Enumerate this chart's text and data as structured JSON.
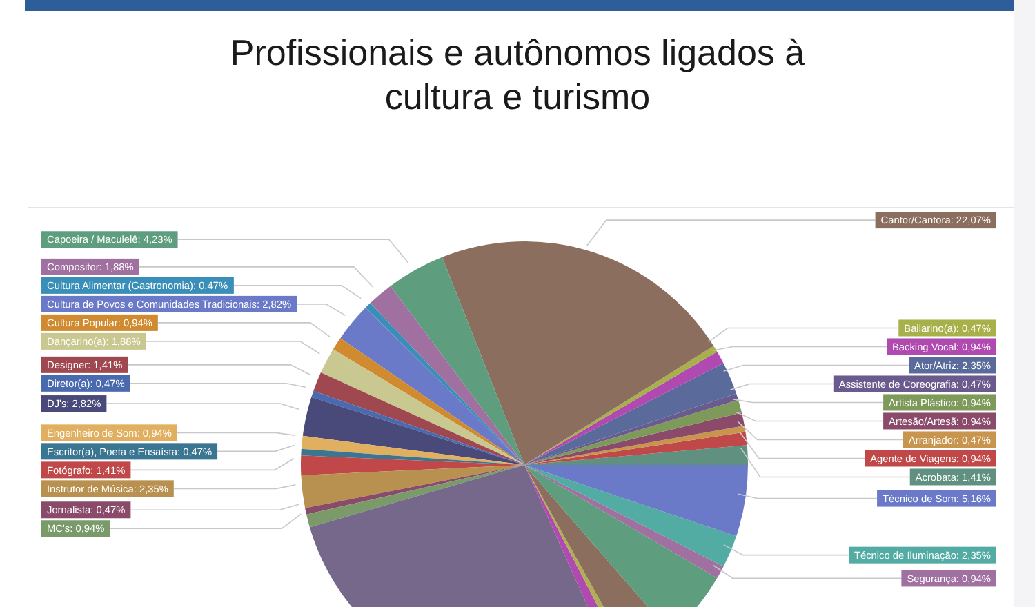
{
  "chart_data": {
    "type": "pie",
    "title": "Profissionais e autônomos ligados à cultura e turismo",
    "categories": [
      "Acrobata",
      "Agente de Viagens",
      "Arranjador",
      "Artesão/Artesã",
      "Artista Plástico",
      "Assistente de Coreografia",
      "Ator/Atriz",
      "Backing Vocal",
      "Bailarino(a)",
      "Cantor/Cantora",
      "Capoeira / Maculelê",
      "Compositor",
      "Cultura Alimentar (Gastronomia)",
      "Cultura de Povos e Comunidades Tradicionais",
      "Cultura Popular",
      "Dançarino(a)",
      "Designer",
      "Diretor(a)",
      "DJ's",
      "Engenheiro de Som",
      "Escritor(a), Poeta e Ensaísta",
      "Fotógrafo",
      "Instrutor de Música",
      "Jornalista",
      "MC's",
      null,
      null,
      null,
      null,
      null,
      "Segurança",
      "Técnico de Iluminação",
      "Técnico de Som"
    ],
    "values": [
      1.41,
      0.94,
      0.47,
      0.94,
      0.94,
      0.47,
      2.35,
      0.94,
      0.47,
      22.07,
      4.23,
      1.88,
      0.47,
      2.82,
      0.94,
      1.88,
      1.41,
      0.47,
      2.82,
      0.94,
      0.47,
      1.41,
      2.35,
      0.47,
      0.94,
      27.19,
      0.94,
      0.47,
      3.29,
      5.16,
      0.94,
      2.35,
      5.16
    ],
    "value_labels": [
      "1,41%",
      "0,94%",
      "0,47%",
      "0,94%",
      "0,94%",
      "0,47%",
      "2,35%",
      "0,94%",
      "0,47%",
      "22,07%",
      "4,23%",
      "1,88%",
      "0,47%",
      "2,82%",
      "0,94%",
      "1,88%",
      "1,41%",
      "0,47%",
      "2,82%",
      "0,94%",
      "0,47%",
      "1,41%",
      "2,35%",
      "0,47%",
      "0,94%",
      null,
      null,
      null,
      null,
      null,
      "0,94%",
      "2,35%",
      "5,16%"
    ],
    "colors": [
      "#5f9080",
      "#c04848",
      "#c8954f",
      "#8c4a6a",
      "#7e9a5a",
      "#6a5a8e",
      "#5a6a9a",
      "#b04ab0",
      "#a8b04a",
      "#8c6e5e",
      "#5e9e7e",
      "#a070a0",
      "#3a8fb8",
      "#6a7ac8",
      "#d08a30",
      "#c8c890",
      "#a04850",
      "#4a6ab0",
      "#4a4a7a",
      "#e0b060",
      "#3a7592",
      "#c04848",
      "#b89050",
      "#8a4a6a",
      "#7a9a6a",
      "#76688a",
      "#b04ab0",
      "#b0b050",
      "#8c6e5e",
      "#5e9e7e",
      "#a070a0",
      "#52aca4",
      "#6a7ac8"
    ],
    "legend": false
  }
}
